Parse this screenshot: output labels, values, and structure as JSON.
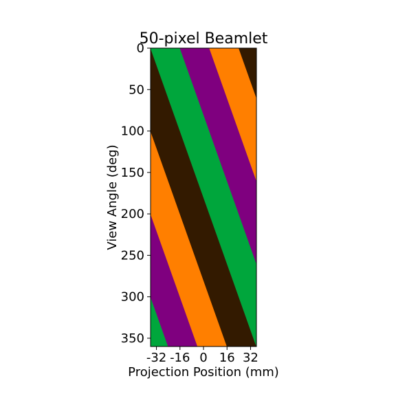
{
  "chart_data": {
    "type": "heatmap",
    "title": "50-pixel Beamlet",
    "xlabel": "Projection Position (mm)",
    "ylabel": "View Angle (deg)",
    "xlim": [
      -36,
      36
    ],
    "ylim": [
      360,
      0
    ],
    "x_ticks": [
      {
        "value": -32,
        "label": "-32"
      },
      {
        "value": -16,
        "label": "-16"
      },
      {
        "value": 0,
        "label": "0"
      },
      {
        "value": 16,
        "label": "16"
      },
      {
        "value": 32,
        "label": "32"
      }
    ],
    "y_ticks": [
      {
        "value": 0,
        "label": "0"
      },
      {
        "value": 50,
        "label": "50"
      },
      {
        "value": 100,
        "label": "100"
      },
      {
        "value": 150,
        "label": "150"
      },
      {
        "value": 200,
        "label": "200"
      },
      {
        "value": 250,
        "label": "250"
      },
      {
        "value": 300,
        "label": "300"
      },
      {
        "value": 350,
        "label": "350"
      }
    ],
    "stripe_slope_mm_per_deg": 0.2,
    "stripe_width_mm": 20,
    "colors": [
      "#00a63c",
      "#7f007f",
      "#ff7f00",
      "#331a00"
    ],
    "stripes": [
      {
        "index": -4,
        "color": "#00a63c",
        "intercept_mm": -116
      },
      {
        "index": -3,
        "color": "#7f007f",
        "intercept_mm": -96
      },
      {
        "index": -2,
        "color": "#ff7f00",
        "intercept_mm": -76
      },
      {
        "index": -1,
        "color": "#331a00",
        "intercept_mm": -56
      },
      {
        "index": 0,
        "color": "#00a63c",
        "intercept_mm": -36
      },
      {
        "index": 1,
        "color": "#7f007f",
        "intercept_mm": -16
      },
      {
        "index": 2,
        "color": "#ff7f00",
        "intercept_mm": 4
      },
      {
        "index": 3,
        "color": "#331a00",
        "intercept_mm": 24
      }
    ]
  }
}
